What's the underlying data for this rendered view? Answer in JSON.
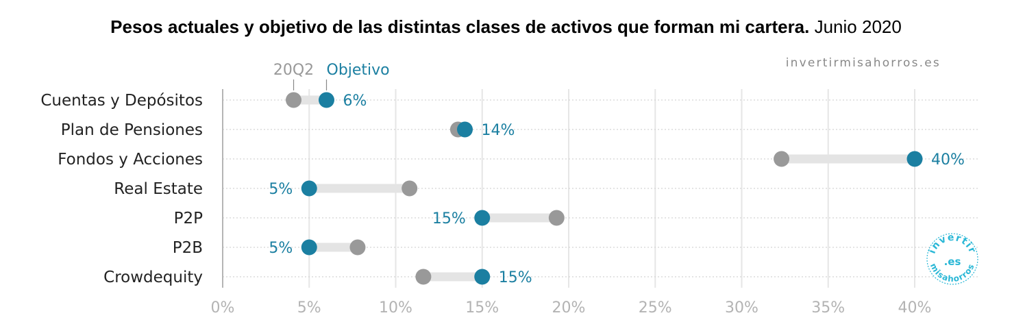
{
  "title": {
    "bold": "Pesos actuales y objetivo de las distintas clases de activos que forman mi cartera.",
    "normal": " Junio 2020"
  },
  "source": "invertirmisahorros.es",
  "logo": {
    "top": "invertir",
    "middle": ".es",
    "bottom": "misahorros"
  },
  "colors": {
    "current": "#999999",
    "target": "#1b7fa1",
    "connector": "#e4e4e4",
    "grid": "#e6e6e6",
    "logo": "#29b7d6"
  },
  "chart_data": {
    "type": "dumbbell",
    "categories": [
      "Cuentas y Depósitos",
      "Plan de Pensiones",
      "Fondos y Acciones",
      "Real Estate",
      "P2P",
      "P2B",
      "Crowdequity"
    ],
    "series": [
      {
        "name": "20Q2",
        "values": [
          4.1,
          13.6,
          32.3,
          10.8,
          19.3,
          7.8,
          11.6
        ]
      },
      {
        "name": "Objetivo",
        "values": [
          6,
          14,
          40,
          5,
          15,
          5,
          15
        ]
      }
    ],
    "value_labels": [
      "6%",
      "14%",
      "40%",
      "5%",
      "15%",
      "5%",
      "15%"
    ],
    "x_ticks": [
      0,
      5,
      10,
      15,
      20,
      25,
      30,
      35,
      40
    ],
    "x_tick_labels": [
      "0%",
      "5%",
      "10%",
      "15%",
      "20%",
      "25%",
      "30%",
      "35%",
      "40%"
    ],
    "xlim": [
      0,
      40
    ],
    "grid": true
  }
}
